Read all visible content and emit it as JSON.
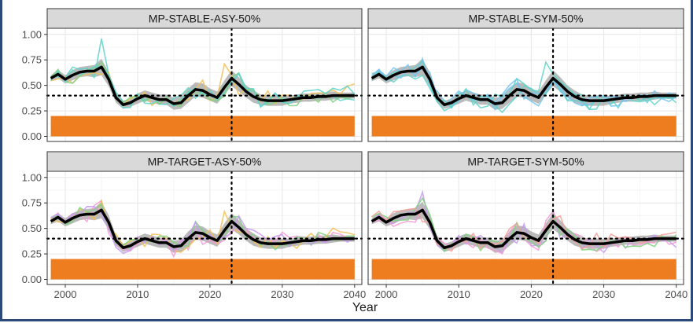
{
  "chart_data": {
    "type": "line",
    "xlabel": "Year",
    "ylabel": "",
    "xlim": [
      1997.5,
      2041
    ],
    "ylim": [
      -0.05,
      1.06
    ],
    "x_ticks": [
      2000,
      2010,
      2020,
      2030,
      2040
    ],
    "y_ticks": [
      0.0,
      0.25,
      0.5,
      0.75,
      1.0
    ],
    "y_tick_labels": [
      "0.00",
      "0.25",
      "0.50",
      "0.75",
      "1.00"
    ],
    "reference_line_y": 0.4,
    "reference_line_x": 2023,
    "orange_band": {
      "from_year": 1998,
      "to_year": 2040,
      "y_min": 0,
      "y_max": 0.2,
      "color": "#ed7d1f"
    },
    "grid": true,
    "facets": [
      "MP-STABLE-ASY-50%",
      "MP-STABLE-SYM-50%",
      "MP-TARGET-ASY-50%",
      "MP-TARGET-SYM-50%"
    ],
    "hist_x": [
      1998,
      1999,
      2000,
      2001,
      2002,
      2003,
      2004,
      2005,
      2006,
      2007,
      2008,
      2009,
      2010,
      2011,
      2012,
      2013,
      2014,
      2015,
      2016,
      2017,
      2018,
      2019,
      2020,
      2021,
      2022,
      2023
    ],
    "hist_median": [
      0.57,
      0.61,
      0.56,
      0.6,
      0.63,
      0.64,
      0.64,
      0.68,
      0.56,
      0.38,
      0.31,
      0.33,
      0.37,
      0.4,
      0.38,
      0.36,
      0.36,
      0.32,
      0.33,
      0.4,
      0.46,
      0.45,
      0.41,
      0.38,
      0.48,
      0.57
    ],
    "hist_band_width": [
      0.03,
      0.04,
      0.04,
      0.05,
      0.05,
      0.05,
      0.06,
      0.08,
      0.07,
      0.05,
      0.04,
      0.04,
      0.05,
      0.05,
      0.05,
      0.05,
      0.05,
      0.06,
      0.06,
      0.07,
      0.07,
      0.07,
      0.06,
      0.06,
      0.07,
      0.08
    ],
    "proj_x": [
      2023,
      2024,
      2025,
      2026,
      2027,
      2028,
      2029,
      2030,
      2031,
      2032,
      2033,
      2034,
      2035,
      2036,
      2037,
      2038,
      2039,
      2040
    ],
    "proj_median": [
      0.57,
      0.51,
      0.44,
      0.39,
      0.36,
      0.35,
      0.35,
      0.35,
      0.36,
      0.37,
      0.38,
      0.38,
      0.39,
      0.39,
      0.4,
      0.4,
      0.4,
      0.4
    ],
    "proj_band_width": [
      0.08,
      0.07,
      0.06,
      0.06,
      0.05,
      0.05,
      0.05,
      0.05,
      0.04,
      0.04,
      0.04,
      0.04,
      0.04,
      0.04,
      0.04,
      0.03,
      0.03,
      0.03
    ],
    "colors": {
      "median": "#000000",
      "band": "#aaaaaa",
      "strip_bg": "#d9d9d9",
      "panel_border": "#333333",
      "grid": "#e6e6e6",
      "ticks_text": "#4d4d4d",
      "iterations": [
        "#5fd3c9",
        "#f0c15a",
        "#7fd17f",
        "#74c5f0",
        "#f29bd4",
        "#c79af2",
        "#f5a09a"
      ]
    },
    "iteration_palettes": [
      [
        0,
        1,
        2,
        0
      ],
      [
        3,
        0,
        0,
        3
      ],
      [
        4,
        1,
        2,
        5
      ],
      [
        5,
        4,
        2,
        6
      ]
    ]
  }
}
